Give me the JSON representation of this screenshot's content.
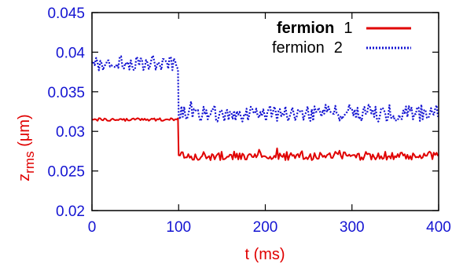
{
  "chart_data": {
    "type": "line",
    "title": "",
    "xlabel": "t (ms)",
    "ylabel_main": "z",
    "ylabel_sub": "rms",
    "ylabel_unit": " (μm)",
    "xlim": [
      0,
      400
    ],
    "ylim": [
      0.02,
      0.045
    ],
    "x_ticks": [
      0,
      100,
      200,
      300,
      400
    ],
    "x_tick_labels": [
      "0",
      "100",
      "200",
      "300",
      "400"
    ],
    "y_ticks": [
      0.02,
      0.025,
      0.03,
      0.035,
      0.04,
      0.045
    ],
    "y_tick_labels": [
      "0.02",
      "0.025",
      "0.03",
      "0.035",
      "0.04",
      "0.045"
    ],
    "grid": false,
    "legend_position": "top-right",
    "series": [
      {
        "name": "fermion 1",
        "legend_bold_name": "fermion",
        "legend_index": "1",
        "color": "#e00000",
        "style": "solid",
        "segments": [
          {
            "x_start": 0,
            "x_end": 100,
            "mean": 0.0315,
            "noise": 0.00018
          },
          {
            "x_start": 100,
            "x_end": 400,
            "mean": 0.0269,
            "noise": 0.00055
          }
        ]
      },
      {
        "name": "fermion 2",
        "legend_bold_name": "fermion",
        "legend_index": "2",
        "color": "#1414d2",
        "style": "dotted",
        "segments": [
          {
            "x_start": 0,
            "x_end": 100,
            "mean": 0.0386,
            "noise": 0.0009
          },
          {
            "x_start": 100,
            "x_end": 400,
            "mean": 0.0323,
            "noise": 0.0011
          }
        ]
      }
    ]
  }
}
